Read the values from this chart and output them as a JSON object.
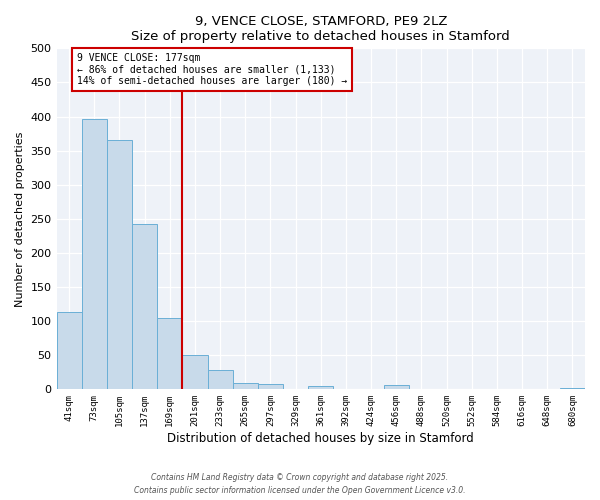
{
  "title": "9, VENCE CLOSE, STAMFORD, PE9 2LZ",
  "subtitle": "Size of property relative to detached houses in Stamford",
  "xlabel": "Distribution of detached houses by size in Stamford",
  "ylabel": "Number of detached properties",
  "categories": [
    "41sqm",
    "73sqm",
    "105sqm",
    "137sqm",
    "169sqm",
    "201sqm",
    "233sqm",
    "265sqm",
    "297sqm",
    "329sqm",
    "361sqm",
    "392sqm",
    "424sqm",
    "456sqm",
    "488sqm",
    "520sqm",
    "552sqm",
    "584sqm",
    "616sqm",
    "648sqm",
    "680sqm"
  ],
  "bar_values": [
    113,
    397,
    365,
    243,
    105,
    50,
    29,
    9,
    8,
    0,
    5,
    0,
    0,
    6,
    0,
    0,
    0,
    0,
    0,
    0,
    2
  ],
  "bar_color": "#c8daea",
  "bar_edge_color": "#6aafd6",
  "vline_x": 4.5,
  "vline_color": "#cc0000",
  "annotation_title": "9 VENCE CLOSE: 177sqm",
  "annotation_line1": "← 86% of detached houses are smaller (1,133)",
  "annotation_line2": "14% of semi-detached houses are larger (180) →",
  "annotation_box_color": "#cc0000",
  "ylim": [
    0,
    500
  ],
  "yticks": [
    0,
    50,
    100,
    150,
    200,
    250,
    300,
    350,
    400,
    450,
    500
  ],
  "bg_color": "#eef2f8",
  "footer_line1": "Contains HM Land Registry data © Crown copyright and database right 2025.",
  "footer_line2": "Contains public sector information licensed under the Open Government Licence v3.0."
}
